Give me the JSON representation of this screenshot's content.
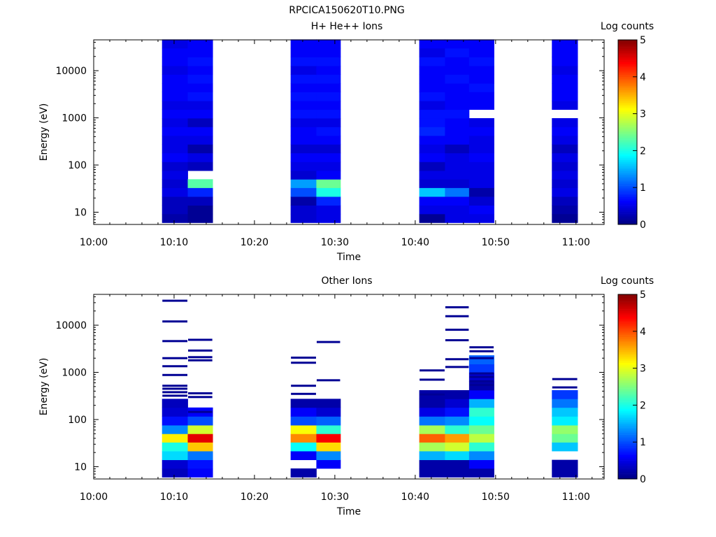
{
  "figure_title": "RPCICA150620T10.PNG",
  "chart_data": [
    {
      "type": "heatmap",
      "title": "H+ He++ Ions",
      "xlabel": "Time",
      "ylabel": "Energy (eV)",
      "colorbar_label": "Log counts",
      "colorbar_ticks": [
        "0",
        "1",
        "2",
        "3",
        "4",
        "5"
      ],
      "colorbar_range": [
        0,
        5
      ],
      "colormap": "jet",
      "y_scale": "log",
      "ylim": [
        5.5,
        45000
      ],
      "y_ticks": [
        {
          "value": 10,
          "label": "10"
        },
        {
          "value": 100,
          "label": "100"
        },
        {
          "value": 1000,
          "label": "1000"
        },
        {
          "value": 10000,
          "label": "10000"
        }
      ],
      "x_ticks": [
        "10:00",
        "10:10",
        "10:20",
        "10:30",
        "10:40",
        "10:50",
        "11:00"
      ],
      "x_range_minutes": [
        0,
        63.5
      ],
      "energy_bins_eV": [
        6.0,
        9.2,
        14,
        21.5,
        33,
        50,
        76,
        117,
        180,
        275,
        420,
        645,
        985,
        1500,
        2300,
        3550,
        5400,
        8300,
        12700,
        19500,
        30000,
        46000
      ],
      "columns": [
        {
          "t_start": 8.5,
          "t_end": 11.7,
          "log_counts": [
            0.2,
            0.3,
            0.3,
            0.5,
            0.4,
            0.5,
            0.4,
            0.6,
            0.5,
            0.5,
            0.6,
            0.5,
            0.6,
            0.5,
            0.6,
            0.6,
            0.6,
            0.5,
            0.6,
            0.6,
            0.5
          ]
        },
        {
          "t_start": 11.7,
          "t_end": 14.8,
          "log_counts": [
            0.1,
            0.1,
            0.3,
            0.8,
            2.3,
            null,
            0.3,
            0.5,
            0.2,
            0.5,
            0.6,
            0.3,
            0.6,
            0.5,
            0.7,
            0.6,
            0.7,
            0.6,
            0.7,
            0.6,
            0.6
          ]
        },
        {
          "t_start": 24.5,
          "t_end": 27.7,
          "log_counts": [
            0.4,
            0.4,
            0.2,
            1.0,
            1.4,
            0.4,
            0.5,
            0.6,
            0.4,
            0.6,
            0.6,
            0.5,
            0.7,
            0.6,
            0.7,
            0.6,
            0.7,
            0.5,
            0.7,
            0.6,
            0.6
          ]
        },
        {
          "t_start": 27.7,
          "t_end": 30.7,
          "log_counts": [
            0.5,
            0.5,
            0.8,
            2.0,
            2.4,
            0.6,
            0.5,
            0.6,
            0.4,
            0.6,
            0.7,
            0.5,
            0.7,
            0.6,
            0.7,
            0.6,
            0.7,
            0.6,
            0.7,
            0.6,
            0.6
          ]
        },
        {
          "t_start": 40.5,
          "t_end": 43.7,
          "log_counts": [
            0.1,
            0.5,
            0.6,
            1.6,
            0.4,
            0.5,
            0.3,
            0.6,
            0.5,
            0.6,
            0.8,
            0.7,
            0.7,
            0.5,
            0.7,
            0.6,
            0.6,
            0.6,
            0.7,
            0.5,
            0.6
          ]
        },
        {
          "t_start": 43.7,
          "t_end": 46.7,
          "log_counts": [
            0.5,
            0.5,
            0.6,
            1.2,
            0.4,
            0.5,
            0.5,
            0.5,
            0.3,
            0.6,
            0.6,
            0.6,
            0.7,
            0.6,
            0.6,
            0.6,
            0.7,
            0.6,
            0.6,
            0.7,
            0.6
          ]
        },
        {
          "t_start": 46.7,
          "t_end": 49.8,
          "log_counts": [
            0.5,
            0.6,
            0.4,
            0.2,
            0.5,
            0.5,
            0.5,
            0.6,
            0.5,
            0.5,
            0.6,
            0.5,
            null,
            0.6,
            0.6,
            0.7,
            0.6,
            0.6,
            0.7,
            0.6,
            0.6
          ]
        },
        {
          "t_start": 57.0,
          "t_end": 60.2,
          "log_counts": [
            0.1,
            0.2,
            0.3,
            0.5,
            0.4,
            0.5,
            0.4,
            0.5,
            0.3,
            0.5,
            0.6,
            0.5,
            null,
            0.5,
            0.6,
            0.6,
            0.6,
            0.5,
            0.6,
            0.6,
            0.6
          ]
        }
      ]
    },
    {
      "type": "heatmap",
      "title": "Other Ions",
      "xlabel": "Time",
      "ylabel": "Energy (eV)",
      "colorbar_label": "Log counts",
      "colorbar_ticks": [
        "0",
        "1",
        "2",
        "3",
        "4",
        "5"
      ],
      "colorbar_range": [
        0,
        5
      ],
      "colormap": "jet",
      "y_scale": "log",
      "ylim": [
        5.5,
        45000
      ],
      "y_ticks": [
        {
          "value": 10,
          "label": "10"
        },
        {
          "value": 100,
          "label": "100"
        },
        {
          "value": 1000,
          "label": "1000"
        },
        {
          "value": 10000,
          "label": "10000"
        }
      ],
      "x_ticks": [
        "10:00",
        "10:10",
        "10:20",
        "10:30",
        "10:40",
        "10:50",
        "11:00"
      ],
      "x_range_minutes": [
        0,
        63.5
      ],
      "energy_bins_eV": [
        6.0,
        9.2,
        14,
        21.5,
        33,
        50,
        76,
        117,
        180,
        275,
        420,
        645,
        985,
        1500,
        2300,
        3550,
        5400,
        8300,
        12700,
        19500,
        30000,
        46000
      ],
      "columns": [
        {
          "t_start": 8.5,
          "t_end": 11.7,
          "log_counts": [
            0.3,
            0.4,
            1.7,
            2.0,
            3.2,
            1.3,
            0.7,
            0.4,
            0.3,
            null,
            null,
            null,
            null,
            null,
            null,
            null,
            null,
            null,
            null,
            null,
            null
          ],
          "lines_eV": [
            33000,
            12000,
            4600,
            2000,
            1350,
            880,
            520,
            450,
            380,
            320
          ]
        },
        {
          "t_start": 11.7,
          "t_end": 14.8,
          "log_counts": [
            0.6,
            0.7,
            1.2,
            3.4,
            4.5,
            2.9,
            1.0,
            0.6,
            null,
            null,
            null,
            null,
            null,
            null,
            null,
            null,
            null,
            null,
            null,
            null,
            null
          ],
          "lines_eV": [
            4900,
            2900,
            2100,
            1800,
            360,
            300,
            145
          ]
        },
        {
          "t_start": 24.5,
          "t_end": 27.7,
          "log_counts": [
            0.2,
            null,
            0.6,
            1.9,
            3.7,
            3.1,
            1.0,
            0.6,
            0.2,
            null,
            null,
            null,
            null,
            null,
            null,
            null,
            null,
            null,
            null,
            null,
            null
          ],
          "lines_eV": [
            2050,
            1600,
            520,
            350
          ]
        },
        {
          "t_start": 27.7,
          "t_end": 30.7,
          "log_counts": [
            null,
            0.6,
            1.3,
            3.3,
            4.4,
            2.1,
            1.1,
            0.4,
            0.2,
            null,
            null,
            null,
            null,
            null,
            null,
            null,
            null,
            null,
            null,
            null,
            null
          ],
          "lines_eV": [
            4400,
            680
          ]
        },
        {
          "t_start": 40.5,
          "t_end": 43.7,
          "log_counts": [
            0.2,
            0.2,
            1.5,
            2.7,
            3.9,
            2.7,
            1.2,
            0.5,
            0.2,
            0.2,
            null,
            null,
            null,
            null,
            null,
            null,
            null,
            null,
            null,
            null,
            null
          ],
          "lines_eV": [
            1100,
            700,
            340
          ]
        },
        {
          "t_start": 43.7,
          "t_end": 46.7,
          "log_counts": [
            0.2,
            0.2,
            1.7,
            2.9,
            3.6,
            2.1,
            1.3,
            0.7,
            0.4,
            0.2,
            null,
            null,
            null,
            null,
            null,
            null,
            null,
            null,
            null,
            null,
            null
          ],
          "lines_eV": [
            24000,
            15500,
            8000,
            4800,
            1900,
            1300
          ]
        },
        {
          "t_start": 46.7,
          "t_end": 49.8,
          "log_counts": [
            0.2,
            0.6,
            1.3,
            2.1,
            2.8,
            2.4,
            1.9,
            2.1,
            1.5,
            0.6,
            0.2,
            0.4,
            0.9,
            1.1,
            null,
            null,
            null,
            null,
            null,
            null,
            null
          ],
          "lines_eV": [
            3400,
            2800,
            2000,
            950,
            800,
            650,
            540
          ]
        },
        {
          "t_start": 57.0,
          "t_end": 60.2,
          "log_counts": [
            0.2,
            0.2,
            null,
            1.6,
            2.4,
            2.6,
            1.8,
            1.6,
            1.2,
            0.9,
            null,
            null,
            null,
            null,
            null,
            null,
            null,
            null,
            null,
            null,
            null
          ],
          "lines_eV": [
            720,
            480
          ]
        }
      ]
    }
  ]
}
